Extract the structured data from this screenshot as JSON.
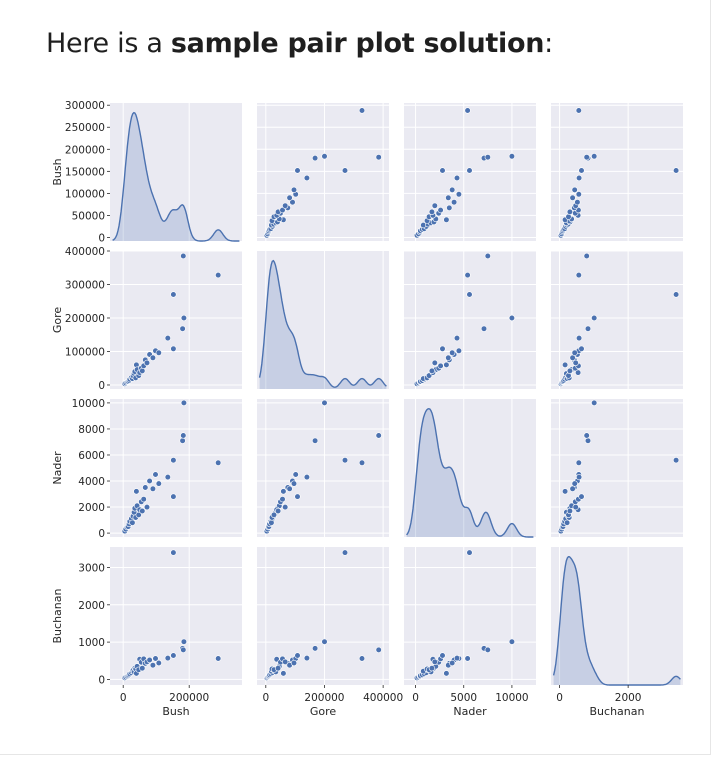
{
  "heading": {
    "prefix": "Here is a ",
    "bold": "sample pair plot solution",
    "suffix": ":"
  },
  "chart_data": {
    "type": "scatter",
    "subtype": "pairplot",
    "variables": [
      "Bush",
      "Gore",
      "Nader",
      "Buchanan"
    ],
    "diagonal": "kde",
    "background_color": "#eaeaf2",
    "grid": true,
    "point_color": "#4c72b0",
    "kde_fill_color": "#4c72b0",
    "axes": {
      "Bush": {
        "lim": [
          -40000,
          360000
        ],
        "ticks": [
          0,
          200000
        ],
        "row_ticks": [
          0,
          50000,
          100000,
          150000,
          200000,
          250000,
          300000
        ],
        "row_lim": [
          -8000,
          305000
        ]
      },
      "Gore": {
        "lim": [
          -30000,
          420000
        ],
        "ticks": [
          0,
          200000,
          400000
        ],
        "row_ticks": [
          0,
          100000,
          200000,
          300000,
          400000
        ],
        "row_lim": [
          -12000,
          400000
        ]
      },
      "Nader": {
        "lim": [
          -1200,
          12500
        ],
        "ticks": [
          0,
          5000,
          10000
        ],
        "row_ticks": [
          0,
          2000,
          4000,
          6000,
          8000,
          10000
        ],
        "row_lim": [
          -300,
          10300
        ]
      },
      "Buchanan": {
        "lim": [
          -250,
          3600
        ],
        "ticks": [
          0,
          2000
        ],
        "row_ticks": [
          0,
          1000,
          2000,
          3000
        ],
        "row_lim": [
          -150,
          3550
        ]
      }
    },
    "points": [
      {
        "Bush": 5000,
        "Gore": 3500,
        "Nader": 150,
        "Buchanan": 40
      },
      {
        "Bush": 8000,
        "Gore": 6000,
        "Nader": 300,
        "Buchanan": 60
      },
      {
        "Bush": 12000,
        "Gore": 9000,
        "Nader": 450,
        "Buchanan": 80
      },
      {
        "Bush": 15000,
        "Gore": 10500,
        "Nader": 500,
        "Buchanan": 100
      },
      {
        "Bush": 18000,
        "Gore": 13000,
        "Nader": 700,
        "Buchanan": 120
      },
      {
        "Bush": 20000,
        "Gore": 17000,
        "Nader": 900,
        "Buchanan": 150
      },
      {
        "Bush": 25000,
        "Gore": 22000,
        "Nader": 1100,
        "Buchanan": 180
      },
      {
        "Bush": 28000,
        "Gore": 19000,
        "Nader": 800,
        "Buchanan": 220
      },
      {
        "Bush": 30000,
        "Gore": 27000,
        "Nader": 1300,
        "Buchanan": 250
      },
      {
        "Bush": 33000,
        "Gore": 34000,
        "Nader": 1600,
        "Buchanan": 200
      },
      {
        "Bush": 35000,
        "Gore": 40000,
        "Nader": 1900,
        "Buchanan": 300
      },
      {
        "Bush": 38000,
        "Gore": 21000,
        "Nader": 1200,
        "Buchanan": 280
      },
      {
        "Bush": 40000,
        "Gore": 60000,
        "Nader": 3200,
        "Buchanan": 160
      },
      {
        "Bush": 42000,
        "Gore": 46000,
        "Nader": 2100,
        "Buchanan": 350
      },
      {
        "Bush": 47000,
        "Gore": 28000,
        "Nader": 1400,
        "Buchanan": 260
      },
      {
        "Bush": 50000,
        "Gore": 37000,
        "Nader": 1800,
        "Buchanan": 540
      },
      {
        "Bush": 55000,
        "Gore": 50000,
        "Nader": 2400,
        "Buchanan": 460
      },
      {
        "Bush": 58000,
        "Gore": 42000,
        "Nader": 1700,
        "Buchanan": 300
      },
      {
        "Bush": 62000,
        "Gore": 57000,
        "Nader": 2600,
        "Buchanan": 550
      },
      {
        "Bush": 67000,
        "Gore": 75000,
        "Nader": 3500,
        "Buchanan": 430
      },
      {
        "Bush": 72000,
        "Gore": 66000,
        "Nader": 2000,
        "Buchanan": 470
      },
      {
        "Bush": 80000,
        "Gore": 91000,
        "Nader": 4000,
        "Buchanan": 520
      },
      {
        "Bush": 90000,
        "Gore": 81000,
        "Nader": 3400,
        "Buchanan": 380
      },
      {
        "Bush": 98000,
        "Gore": 102000,
        "Nader": 4500,
        "Buchanan": 560
      },
      {
        "Bush": 108000,
        "Gore": 96000,
        "Nader": 3800,
        "Buchanan": 440
      },
      {
        "Bush": 135000,
        "Gore": 140000,
        "Nader": 4300,
        "Buchanan": 570
      },
      {
        "Bush": 152000,
        "Gore": 270000,
        "Nader": 5600,
        "Buchanan": 3400
      },
      {
        "Bush": 152000,
        "Gore": 108000,
        "Nader": 2800,
        "Buchanan": 640
      },
      {
        "Bush": 180000,
        "Gore": 168000,
        "Nader": 7100,
        "Buchanan": 830
      },
      {
        "Bush": 182000,
        "Gore": 385000,
        "Nader": 7500,
        "Buchanan": 790
      },
      {
        "Bush": 184000,
        "Gore": 200000,
        "Nader": 10000,
        "Buchanan": 1010
      },
      {
        "Bush": 288000,
        "Gore": 328000,
        "Nader": 5400,
        "Buchanan": 560
      }
    ]
  }
}
